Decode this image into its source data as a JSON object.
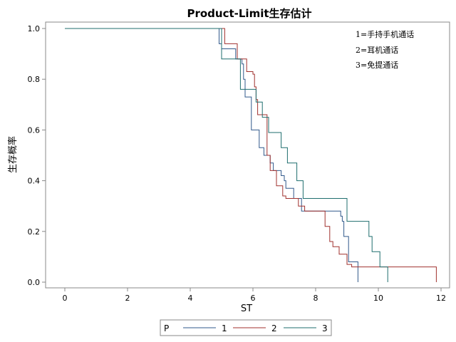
{
  "chart_data": {
    "type": "line",
    "step": true,
    "title": "Product-Limit生存估计",
    "xlabel": "ST",
    "ylabel": "生存概率",
    "xlim": [
      -0.6,
      12.2
    ],
    "ylim": [
      0,
      1.0
    ],
    "xticks": [
      "0",
      "2",
      "4",
      "6",
      "8",
      "10",
      "12"
    ],
    "yticks": [
      "0.0",
      "0.2",
      "0.4",
      "0.6",
      "0.8",
      "1.0"
    ],
    "grid": false,
    "annotations": [
      "1=手持手机通话",
      "2=耳机通话",
      "3=免提通话"
    ],
    "legend": {
      "title": "P",
      "position": "bottom"
    },
    "colors": {
      "1": "#31598b",
      "2": "#a0312e",
      "3": "#1f6e6e"
    },
    "series": [
      {
        "name": "1",
        "x": [
          0,
          4.92,
          5.0,
          5.45,
          5.65,
          5.7,
          5.75,
          5.95,
          6.1,
          6.2,
          6.35,
          6.55,
          6.65,
          6.9,
          7.0,
          7.05,
          7.3,
          7.55,
          8.8,
          8.85,
          8.9,
          9.05,
          9.35
        ],
        "y": [
          1.0,
          0.94,
          0.92,
          0.88,
          0.86,
          0.8,
          0.73,
          0.6,
          0.6,
          0.53,
          0.5,
          0.47,
          0.44,
          0.42,
          0.4,
          0.37,
          0.33,
          0.28,
          0.26,
          0.24,
          0.18,
          0.08,
          0.0
        ]
      },
      {
        "name": "2",
        "x": [
          0,
          5.1,
          5.5,
          5.8,
          6.0,
          6.05,
          6.1,
          6.15,
          6.45,
          6.55,
          6.75,
          6.95,
          7.05,
          7.45,
          7.65,
          8.3,
          8.45,
          8.55,
          8.75,
          9.0,
          9.15,
          11.85
        ],
        "y": [
          1.0,
          0.94,
          0.88,
          0.83,
          0.82,
          0.77,
          0.72,
          0.66,
          0.5,
          0.44,
          0.38,
          0.34,
          0.33,
          0.3,
          0.28,
          0.22,
          0.16,
          0.14,
          0.11,
          0.07,
          0.06,
          0.0
        ]
      },
      {
        "name": "3",
        "x": [
          0,
          5.0,
          5.2,
          5.6,
          5.8,
          6.1,
          6.3,
          6.5,
          6.9,
          7.1,
          7.4,
          7.6,
          8.1,
          8.8,
          9.0,
          9.2,
          9.55,
          9.7,
          9.8,
          10.05,
          10.3
        ],
        "y": [
          1.0,
          0.88,
          0.88,
          0.76,
          0.76,
          0.71,
          0.65,
          0.59,
          0.53,
          0.47,
          0.4,
          0.33,
          0.33,
          0.33,
          0.24,
          0.24,
          0.24,
          0.18,
          0.12,
          0.06,
          0.0
        ]
      }
    ]
  }
}
